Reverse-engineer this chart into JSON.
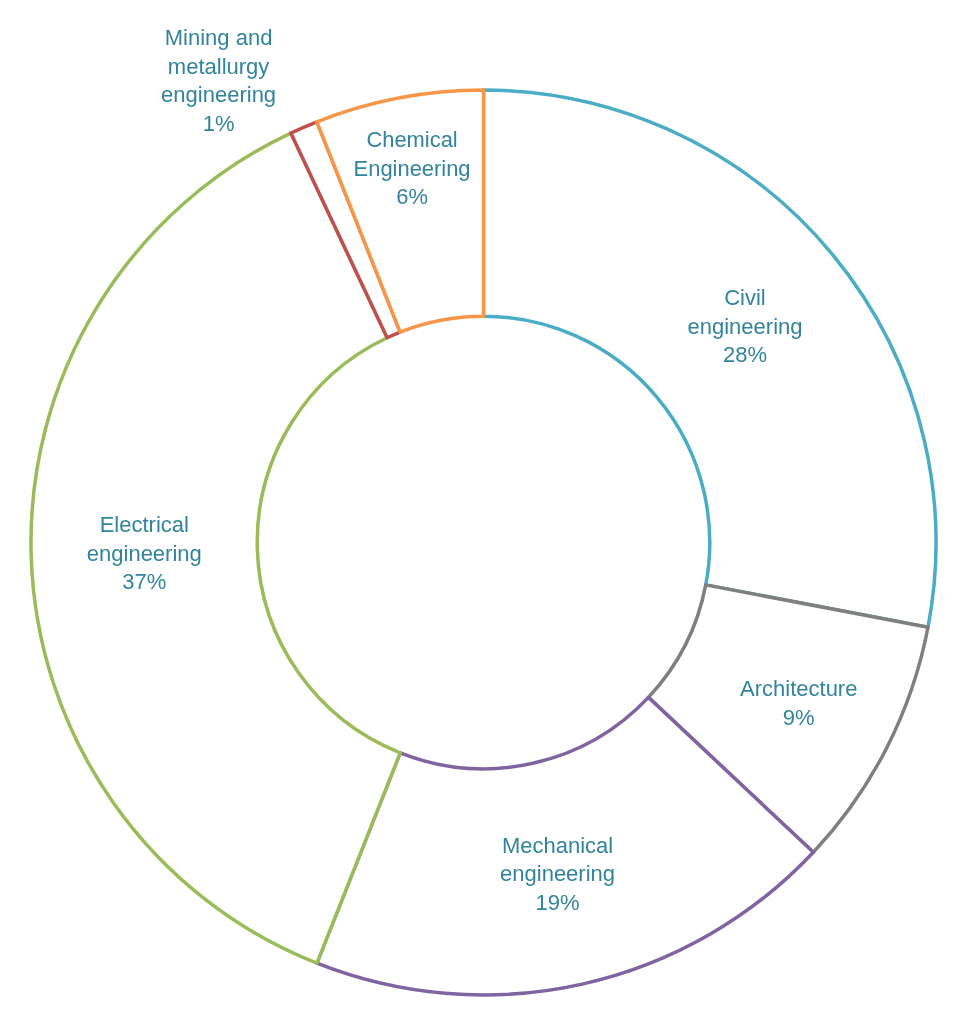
{
  "chart_data": {
    "type": "donut",
    "categories": [
      "Civil engineering",
      "Architecture",
      "Mechanical engineering",
      "Electrical engineering",
      "Mining and metallurgy engineering",
      "Chemical Engineering"
    ],
    "values": [
      28,
      9,
      19,
      37,
      1,
      6
    ],
    "value_labels": [
      "28%",
      "9%",
      "19%",
      "37%",
      "1%",
      "6%"
    ],
    "colors": [
      "#4bacc6",
      "#7f7f7f",
      "#8064a2",
      "#9bbb59",
      "#c0504d",
      "#f79646"
    ],
    "legend": false
  }
}
